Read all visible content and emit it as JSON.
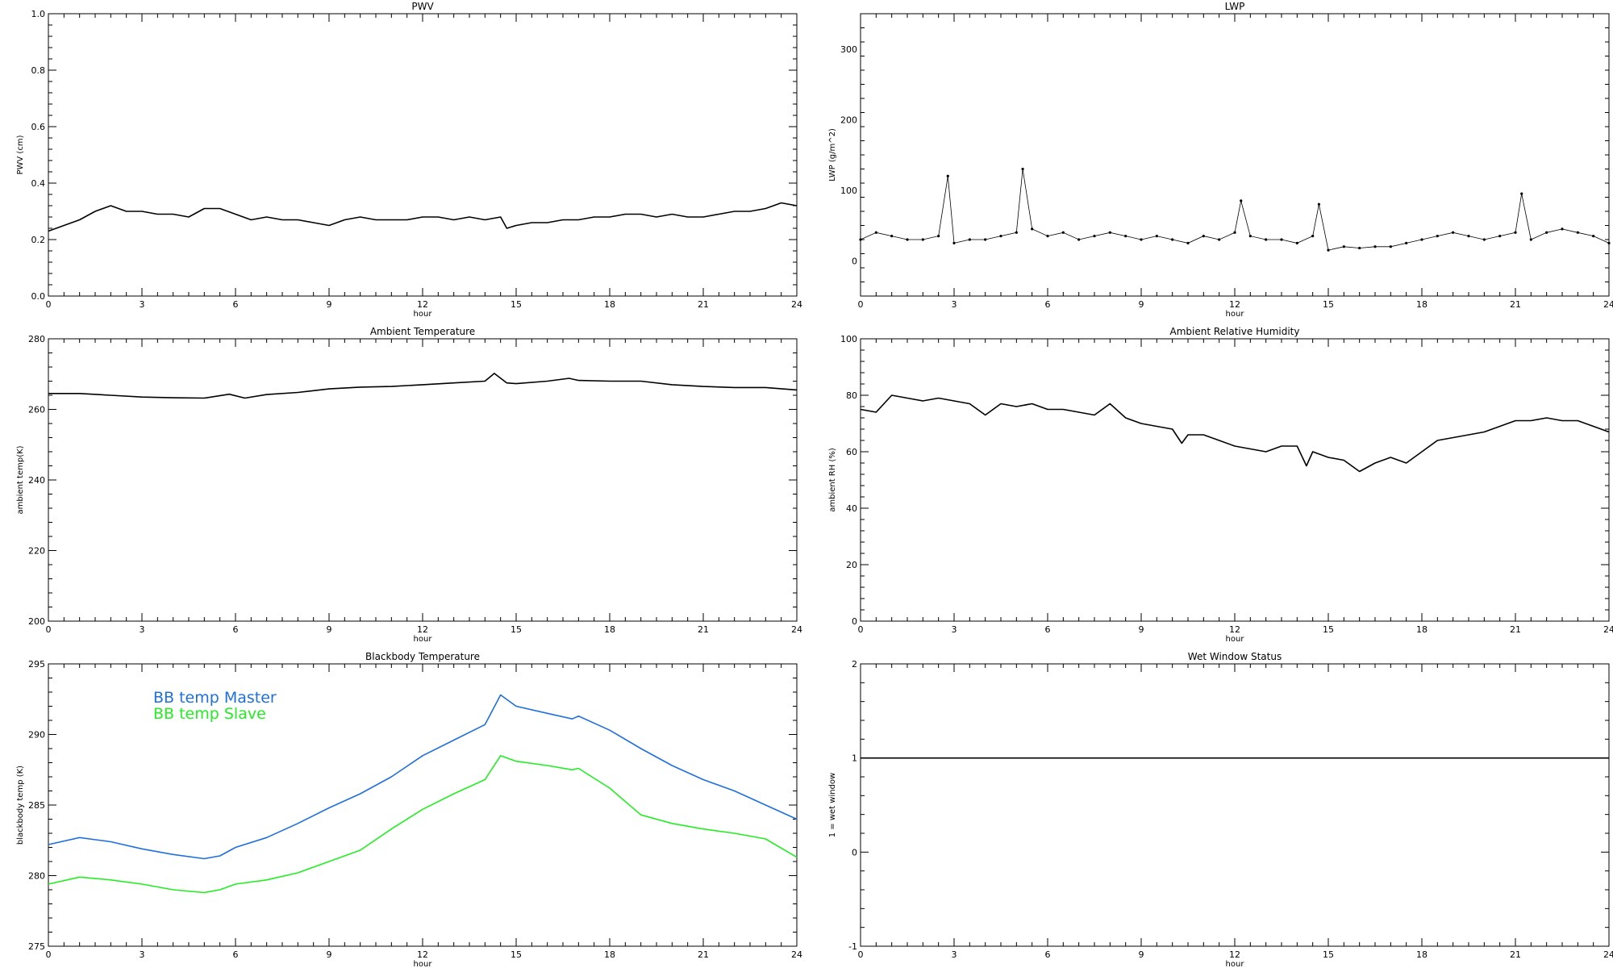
{
  "chart_data": [
    {
      "type": "line",
      "title": "PWV",
      "xlabel": "hour",
      "ylabel": "PWV (cm)",
      "xlim": [
        0,
        24
      ],
      "ylim": [
        0.0,
        1.0
      ],
      "xticks": [
        0,
        3,
        6,
        9,
        12,
        15,
        18,
        21,
        24
      ],
      "yticks": [
        "0.0",
        "0.2",
        "0.4",
        "0.6",
        "0.8",
        "1.0"
      ],
      "yticks_values": [
        0.0,
        0.2,
        0.4,
        0.6,
        0.8,
        1.0
      ],
      "series": [
        {
          "color": "#000000",
          "x": [
            0,
            0.5,
            1,
            1.5,
            2,
            2.5,
            3,
            3.5,
            4,
            4.5,
            5,
            5.5,
            6,
            6.5,
            7,
            7.5,
            8,
            8.5,
            9,
            9.5,
            10,
            10.5,
            11,
            11.5,
            12,
            12.5,
            13,
            13.5,
            14,
            14.5,
            14.7,
            15,
            15.5,
            16,
            16.5,
            17,
            17.5,
            18,
            18.5,
            19,
            19.5,
            20,
            20.5,
            21,
            21.5,
            22,
            22.5,
            23,
            23.5,
            24
          ],
          "y": [
            0.23,
            0.25,
            0.27,
            0.3,
            0.32,
            0.3,
            0.3,
            0.29,
            0.29,
            0.28,
            0.31,
            0.31,
            0.29,
            0.27,
            0.28,
            0.27,
            0.27,
            0.26,
            0.25,
            0.27,
            0.28,
            0.27,
            0.27,
            0.27,
            0.28,
            0.28,
            0.27,
            0.28,
            0.27,
            0.28,
            0.24,
            0.25,
            0.26,
            0.26,
            0.27,
            0.27,
            0.28,
            0.28,
            0.29,
            0.29,
            0.28,
            0.29,
            0.28,
            0.28,
            0.29,
            0.3,
            0.3,
            0.31,
            0.33,
            0.32
          ]
        }
      ]
    },
    {
      "type": "scatter",
      "title": "LWP",
      "xlabel": "hour",
      "ylabel": "LWP (g/m^2)",
      "xlim": [
        0,
        24
      ],
      "ylim": [
        -50,
        350
      ],
      "xticks": [
        0,
        3,
        6,
        9,
        12,
        15,
        18,
        21,
        24
      ],
      "yticks": [
        "0",
        "100",
        "200",
        "300"
      ],
      "yticks_values": [
        0,
        100,
        200,
        300
      ],
      "series": [
        {
          "color": "#000000",
          "x": [
            0,
            0.5,
            1,
            1.5,
            2,
            2.5,
            2.8,
            3,
            3.5,
            4,
            4.5,
            5,
            5.2,
            5.5,
            6,
            6.5,
            7,
            7.5,
            8,
            8.5,
            9,
            9.5,
            10,
            10.5,
            11,
            11.5,
            12,
            12.2,
            12.5,
            13,
            13.5,
            14,
            14.5,
            14.7,
            15,
            15.5,
            16,
            16.5,
            17,
            17.5,
            18,
            18.5,
            19,
            19.5,
            20,
            20.5,
            21,
            21.2,
            21.5,
            22,
            22.5,
            23,
            23.5,
            24
          ],
          "y": [
            30,
            40,
            35,
            30,
            30,
            35,
            120,
            25,
            30,
            30,
            35,
            40,
            130,
            45,
            35,
            40,
            30,
            35,
            40,
            35,
            30,
            35,
            30,
            25,
            35,
            30,
            40,
            85,
            35,
            30,
            30,
            25,
            35,
            80,
            15,
            20,
            18,
            20,
            20,
            25,
            30,
            35,
            40,
            35,
            30,
            35,
            40,
            95,
            30,
            40,
            45,
            40,
            35,
            25
          ]
        }
      ]
    },
    {
      "type": "line",
      "title": "Ambient Temperature",
      "xlabel": "hour",
      "ylabel": "ambient temp(K)",
      "xlim": [
        0,
        24
      ],
      "ylim": [
        200,
        280
      ],
      "xticks": [
        0,
        3,
        6,
        9,
        12,
        15,
        18,
        21,
        24
      ],
      "yticks": [
        "200",
        "220",
        "240",
        "260",
        "280"
      ],
      "yticks_values": [
        200,
        220,
        240,
        260,
        280
      ],
      "series": [
        {
          "color": "#000000",
          "x": [
            0,
            1,
            2,
            3,
            4,
            5,
            5.8,
            6.3,
            7,
            8,
            9,
            10,
            11,
            12,
            13,
            14,
            14.3,
            14.7,
            15,
            16,
            16.7,
            17,
            18,
            19,
            20,
            21,
            22,
            23,
            24
          ],
          "y": [
            264.5,
            264.5,
            264,
            263.5,
            263.3,
            263.2,
            264.3,
            263.2,
            264.2,
            264.8,
            265.8,
            266.3,
            266.5,
            267,
            267.5,
            268,
            270.2,
            267.5,
            267.3,
            268,
            268.8,
            268.2,
            268,
            268,
            267,
            266.5,
            266.2,
            266.2,
            265.5
          ]
        }
      ]
    },
    {
      "type": "line",
      "title": "Ambient Relative Humidity",
      "xlabel": "hour",
      "ylabel": "ambient RH (%)",
      "xlim": [
        0,
        24
      ],
      "ylim": [
        0,
        100
      ],
      "xticks": [
        0,
        3,
        6,
        9,
        12,
        15,
        18,
        21,
        24
      ],
      "yticks": [
        "0",
        "20",
        "40",
        "60",
        "80",
        "100"
      ],
      "yticks_values": [
        0,
        20,
        40,
        60,
        80,
        100
      ],
      "series": [
        {
          "color": "#000000",
          "x": [
            0,
            0.5,
            1,
            1.5,
            2,
            2.5,
            3,
            3.5,
            4,
            4.5,
            5,
            5.5,
            6,
            6.5,
            7,
            7.5,
            8,
            8.5,
            9,
            9.5,
            10,
            10.3,
            10.5,
            11,
            11.5,
            12,
            12.5,
            13,
            13.5,
            14,
            14.3,
            14.5,
            15,
            15.5,
            16,
            16.5,
            17,
            17.5,
            18,
            18.5,
            19,
            19.5,
            20,
            20.5,
            21,
            21.5,
            22,
            22.5,
            23,
            23.5,
            24
          ],
          "y": [
            75,
            74,
            80,
            79,
            78,
            79,
            78,
            77,
            73,
            77,
            76,
            77,
            75,
            75,
            74,
            73,
            77,
            72,
            70,
            69,
            68,
            63,
            66,
            66,
            64,
            62,
            61,
            60,
            62,
            62,
            55,
            60,
            58,
            57,
            53,
            56,
            58,
            56,
            60,
            64,
            65,
            66,
            67,
            69,
            71,
            71,
            72,
            71,
            71,
            69,
            67
          ]
        }
      ]
    },
    {
      "type": "line",
      "title": "Blackbody Temperature",
      "xlabel": "hour",
      "ylabel": "blackbody temp (K)",
      "xlim": [
        0,
        24
      ],
      "ylim": [
        275,
        295
      ],
      "xticks": [
        0,
        3,
        6,
        9,
        12,
        15,
        18,
        21,
        24
      ],
      "yticks": [
        "275",
        "280",
        "285",
        "290",
        "295"
      ],
      "yticks_values": [
        275,
        280,
        285,
        290,
        295
      ],
      "legend": "top-left",
      "series": [
        {
          "name": "BB temp Master",
          "color": "#1f6fe0",
          "x": [
            0,
            1,
            2,
            3,
            4,
            5,
            5.5,
            6,
            7,
            8,
            9,
            10,
            11,
            12,
            13,
            14,
            14.5,
            15,
            16,
            16.8,
            17,
            18,
            19,
            20,
            21,
            22,
            23,
            24
          ],
          "y": [
            282.2,
            282.7,
            282.4,
            281.9,
            281.5,
            281.2,
            281.4,
            282,
            282.7,
            283.7,
            284.8,
            285.8,
            287,
            288.5,
            289.6,
            290.7,
            292.8,
            292,
            291.5,
            291.1,
            291.3,
            290.3,
            289,
            287.8,
            286.8,
            286,
            285,
            284
          ]
        },
        {
          "name": "BB temp Slave",
          "color": "#22ee22",
          "x": [
            0,
            1,
            2,
            3,
            4,
            5,
            5.5,
            6,
            7,
            8,
            9,
            10,
            11,
            12,
            13,
            14,
            14.5,
            15,
            16,
            16.8,
            17,
            18,
            19,
            20,
            21,
            22,
            23,
            24
          ],
          "y": [
            279.4,
            279.9,
            279.7,
            279.4,
            279,
            278.8,
            279,
            279.4,
            279.7,
            280.2,
            281,
            281.8,
            283.3,
            284.7,
            285.8,
            286.8,
            288.5,
            288.1,
            287.8,
            287.5,
            287.6,
            286.2,
            284.3,
            283.7,
            283.3,
            283,
            282.6,
            281.3
          ]
        }
      ]
    },
    {
      "type": "line",
      "title": "Wet Window Status",
      "xlabel": "hour",
      "ylabel": "1 = wet window",
      "xlim": [
        0,
        24
      ],
      "ylim": [
        -1,
        2
      ],
      "xticks": [
        0,
        3,
        6,
        9,
        12,
        15,
        18,
        21,
        24
      ],
      "yticks": [
        "-1",
        "0",
        "1",
        "2"
      ],
      "yticks_values": [
        -1,
        0,
        1,
        2
      ],
      "series": [
        {
          "color": "#000000",
          "x": [
            0,
            24
          ],
          "y": [
            1,
            1
          ]
        }
      ]
    }
  ]
}
